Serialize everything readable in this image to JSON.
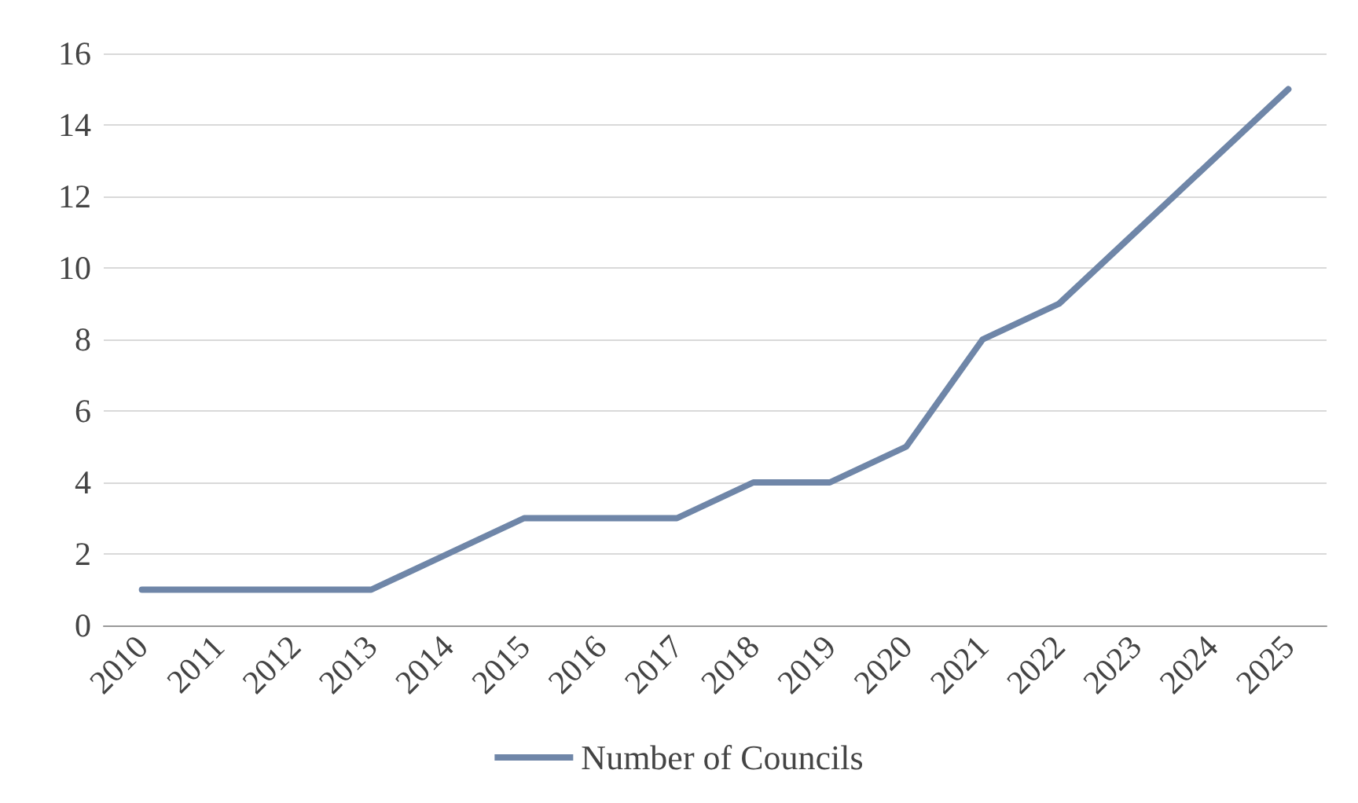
{
  "chart_data": {
    "type": "line",
    "categories": [
      "2010",
      "2011",
      "2012",
      "2013",
      "2014",
      "2015",
      "2016",
      "2017",
      "2018",
      "2019",
      "2020",
      "2021",
      "2022",
      "2023",
      "2024",
      "2025"
    ],
    "series": [
      {
        "name": "Number of Councils",
        "color": "#6f86a8",
        "values": [
          1,
          1,
          1,
          1,
          2,
          3,
          3,
          3,
          4,
          4,
          5,
          8,
          9,
          11,
          13,
          15
        ]
      }
    ],
    "ylim": [
      0,
      16
    ],
    "yticks": [
      0,
      2,
      4,
      6,
      8,
      10,
      12,
      14,
      16
    ],
    "grid": "y",
    "legend": "bottom",
    "marker": "none",
    "line_style": "solid"
  }
}
